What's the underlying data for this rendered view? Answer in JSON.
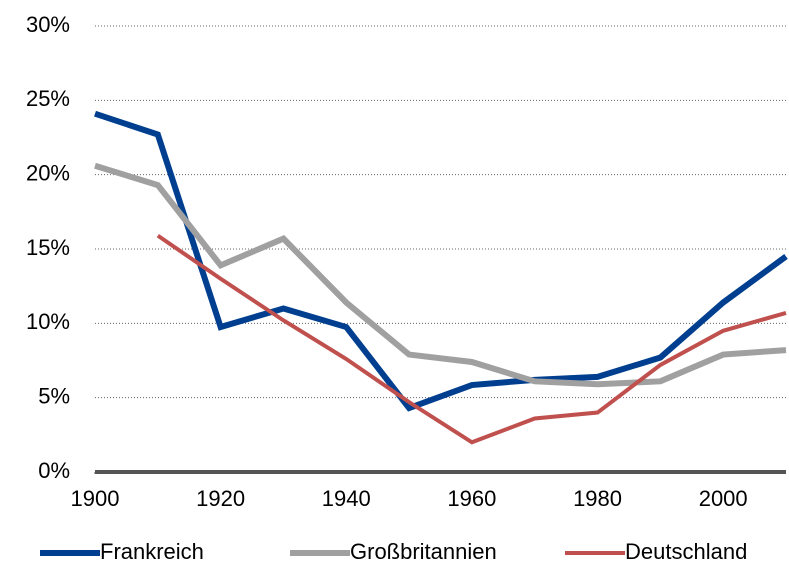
{
  "chart_data": {
    "type": "line",
    "x": [
      1900,
      1910,
      1920,
      1930,
      1940,
      1950,
      1960,
      1970,
      1980,
      1990,
      2000,
      2010
    ],
    "series": [
      {
        "name": "Frankreich",
        "color": "#003f8f",
        "values": [
          24.1,
          22.7,
          9.75,
          11.0,
          9.75,
          4.3,
          5.85,
          6.2,
          6.4,
          7.7,
          11.4,
          14.5
        ]
      },
      {
        "name": "Großbritannien",
        "color": "#a0a0a0",
        "values": [
          20.6,
          19.3,
          13.9,
          15.7,
          11.4,
          7.9,
          7.4,
          6.1,
          5.9,
          6.1,
          7.9,
          8.2
        ]
      },
      {
        "name": "Deutschland",
        "color": "#c0504d",
        "values": [
          null,
          15.9,
          13.0,
          10.2,
          7.6,
          4.7,
          2.0,
          3.6,
          4.0,
          7.2,
          9.5,
          10.7
        ]
      }
    ],
    "xlim": [
      1900,
      2010
    ],
    "xticks": [
      1900,
      1920,
      1940,
      1960,
      1980,
      2000
    ],
    "ylim": [
      0,
      30
    ],
    "yticks": [
      {
        "value": 0,
        "label": "0%"
      },
      {
        "value": 5,
        "label": "5%"
      },
      {
        "value": 10,
        "label": "10%"
      },
      {
        "value": 15,
        "label": "15%"
      },
      {
        "value": 20,
        "label": "20%"
      },
      {
        "value": 25,
        "label": "25%"
      },
      {
        "value": 30,
        "label": "30%"
      }
    ],
    "grid": true,
    "legend": "bottom"
  }
}
